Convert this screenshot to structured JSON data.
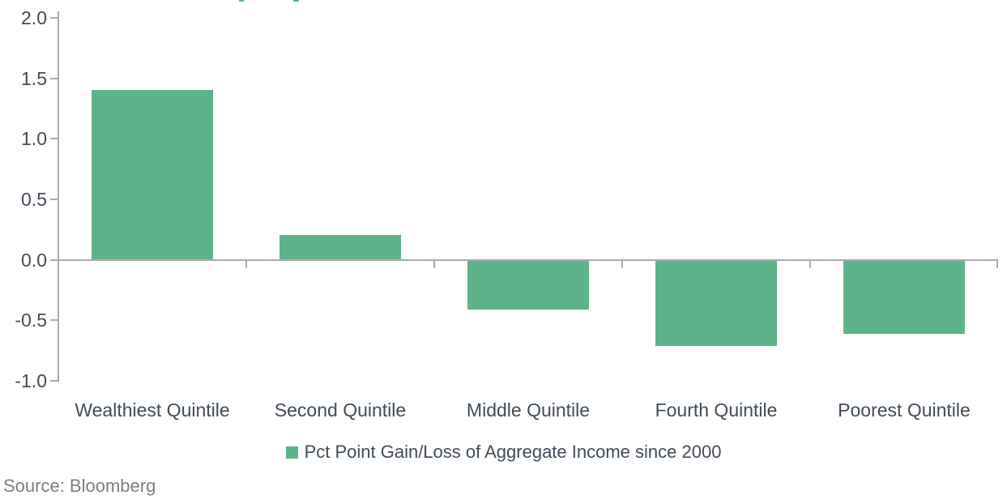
{
  "chart_data": {
    "type": "bar",
    "categories": [
      "Wealthiest Quintile",
      "Second Quintile",
      "Middle Quintile",
      "Fourth Quintile",
      "Poorest Quintile"
    ],
    "series": [
      {
        "name": "Pct Point Gain/Loss of Aggregate Income since 2000",
        "values": [
          1.4,
          0.2,
          -0.4,
          -0.7,
          -0.6
        ]
      }
    ],
    "title": "",
    "xlabel": "",
    "ylabel": "",
    "ylim": [
      -1.0,
      2.0
    ],
    "ytick_values": [
      2.0,
      1.5,
      1.0,
      0.5,
      0.0,
      -0.5,
      -1.0
    ],
    "ytick_labels": [
      "2.0",
      "1.5",
      "1.0",
      "0.5",
      "0.0",
      "-0.5",
      "-1.0"
    ],
    "grid": false,
    "legend_position": "bottom"
  },
  "legend": {
    "label": "Pct Point Gain/Loss of Aggregate Income since 2000"
  },
  "footer": {
    "source_label": "Source: Bloomberg"
  },
  "colors": {
    "bar": "#5fb38b",
    "axis": "#a9abad",
    "tick_text": "#414c57",
    "category_text": "#414c57",
    "legend_text": "#414c57",
    "source_text": "#7b7f82"
  }
}
